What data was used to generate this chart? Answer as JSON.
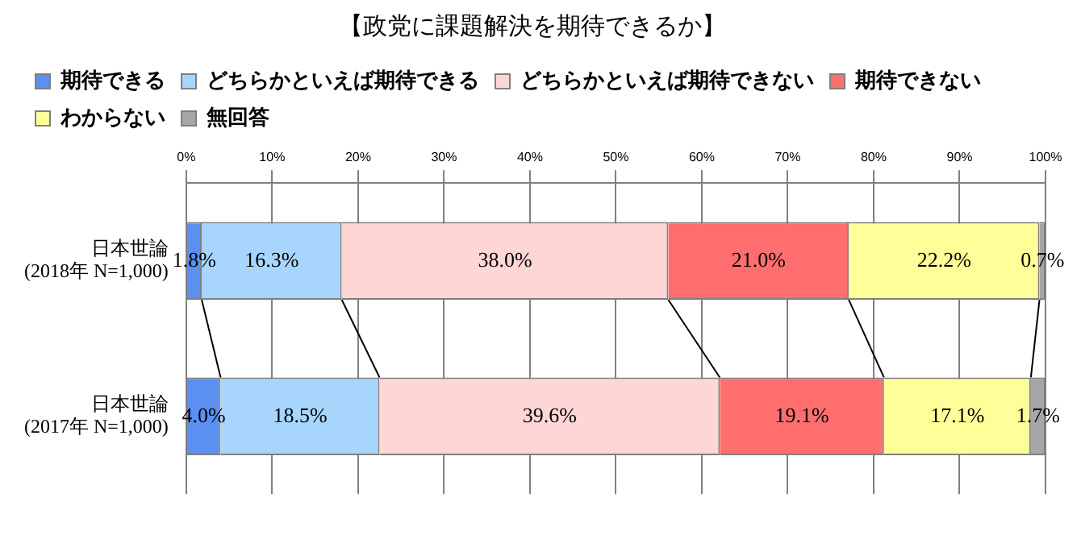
{
  "chart_data": {
    "type": "bar",
    "orientation": "horizontal",
    "stacked": true,
    "title": "【政党に課題解決を期待できるか】",
    "categories": [
      "日本世論\n(2018年 N=1,000)",
      "日本世論\n(2017年 N=1,000)"
    ],
    "series": [
      {
        "name": "期待できる",
        "color": "#5b8ff0",
        "values": [
          1.8,
          4.0
        ],
        "value_labels": [
          "1.8%",
          "4.0%"
        ]
      },
      {
        "name": "どちらかといえば期待できる",
        "color": "#a7d5fb",
        "values": [
          16.3,
          18.5
        ],
        "value_labels": [
          "16.3%",
          "18.5%"
        ]
      },
      {
        "name": "どちらかといえば期待できない",
        "color": "#ffd6d6",
        "values": [
          38.0,
          39.6
        ],
        "value_labels": [
          "38.0%",
          "39.6%"
        ]
      },
      {
        "name": "期待できない",
        "color": "#ff6e6e",
        "values": [
          21.0,
          19.1
        ],
        "value_labels": [
          "21.0%",
          "19.1%"
        ]
      },
      {
        "name": "わからない",
        "color": "#ffff99",
        "values": [
          22.2,
          17.1
        ],
        "value_labels": [
          "22.2%",
          "17.1%"
        ]
      },
      {
        "name": "無回答",
        "color": "#a6a6a6",
        "values": [
          0.7,
          1.7
        ],
        "value_labels": [
          "0.7%",
          "1.7%"
        ]
      }
    ],
    "xlim": [
      0,
      100
    ],
    "xticks": [
      {
        "value": 0,
        "label": "0%"
      },
      {
        "value": 10,
        "label": "10%"
      },
      {
        "value": 20,
        "label": "20%"
      },
      {
        "value": 30,
        "label": "30%"
      },
      {
        "value": 40,
        "label": "40%"
      },
      {
        "value": 50,
        "label": "50%"
      },
      {
        "value": 60,
        "label": "60%"
      },
      {
        "value": 70,
        "label": "70%"
      },
      {
        "value": 80,
        "label": "80%"
      },
      {
        "value": 90,
        "label": "90%"
      },
      {
        "value": 100,
        "label": "100%"
      }
    ],
    "grid": "x",
    "legend": "top"
  }
}
